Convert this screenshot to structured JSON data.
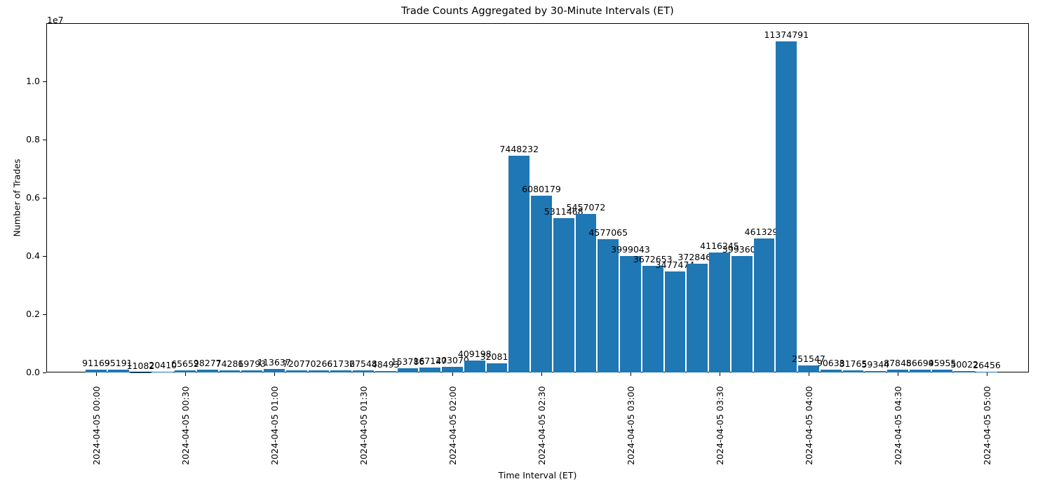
{
  "title": "Trade Counts Aggregated by 30-Minute Intervals (ET)",
  "chart_data": {
    "type": "bar",
    "title": "Trade Counts Aggregated by 30-Minute Intervals (ET)",
    "xlabel": "Time Interval (ET)",
    "ylabel": "Number of Trades",
    "y_offset_label": "1e7",
    "y_tick_labels": [
      "0.0",
      "0.2",
      "0.4",
      "0.6",
      "0.8",
      "1.0"
    ],
    "y_tick_values": [
      0,
      2000000,
      4000000,
      6000000,
      8000000,
      10000000
    ],
    "ylim": [
      0,
      12000000
    ],
    "grid": false,
    "legend": false,
    "bar_color": "#1f77b4",
    "x_tick_labels": [
      "2024-04-05 00:00",
      "2024-04-05 00:30",
      "2024-04-05 01:00",
      "2024-04-05 01:30",
      "2024-04-05 02:00",
      "2024-04-05 02:30",
      "2024-04-05 03:00",
      "2024-04-05 03:30",
      "2024-04-05 04:00",
      "2024-04-05 04:30",
      "2024-04-05 05:00"
    ],
    "bars_per_tick_interval": 4,
    "values": [
      91169,
      95191,
      11082,
      20410,
      65652,
      98277,
      74281,
      69793,
      113637,
      72077,
      70266,
      61732,
      67548,
      48493,
      153786,
      167147,
      203070,
      409198,
      320810,
      7448232,
      6080179,
      5311468,
      5457072,
      4577065,
      3999043,
      3672653,
      3477474,
      3728461,
      4116245,
      3993604,
      4613296,
      11374791,
      251547,
      90633,
      81765,
      59344,
      87845,
      86694,
      95955,
      50022,
      26456
    ]
  }
}
